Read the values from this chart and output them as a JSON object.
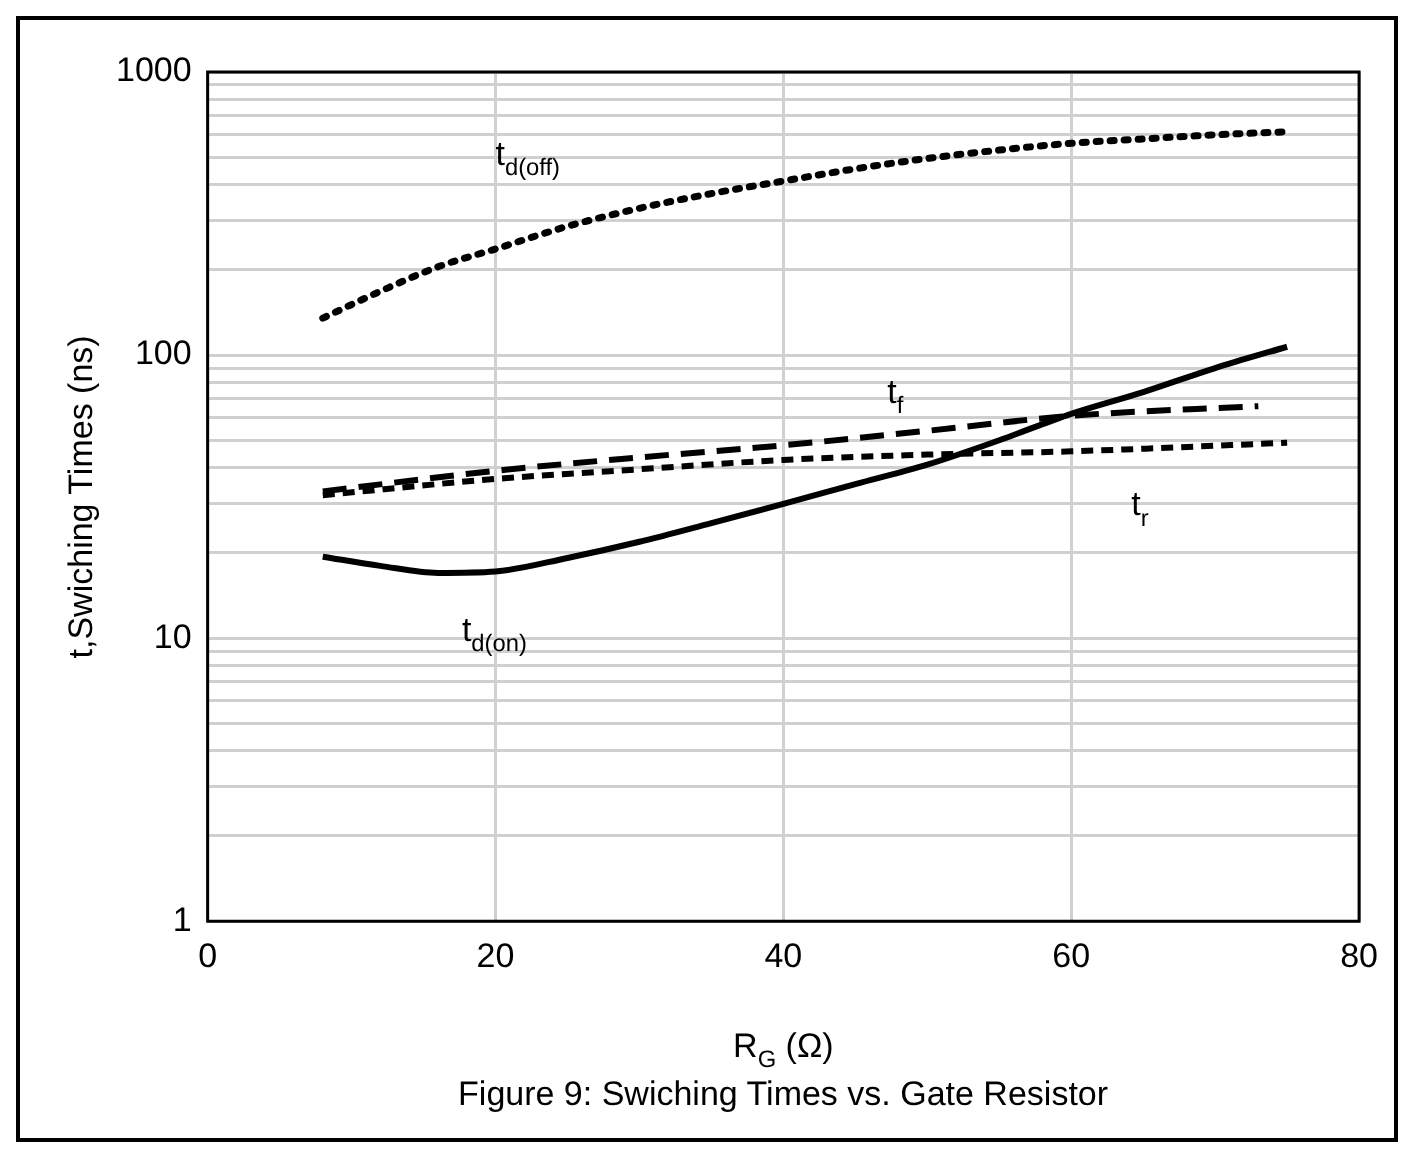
{
  "chart_data": {
    "type": "line",
    "xlabel": "R$_{G}$ (Ω)",
    "ylabel": "t,Swiching Times (ns)",
    "log": "y",
    "grid": true,
    "legend": false,
    "marker": "none",
    "xlim": [
      0,
      80
    ],
    "xticks": [
      0,
      20,
      40,
      60,
      80
    ],
    "ylim": [
      1,
      1000
    ],
    "yticks": [
      1,
      {
        "value": 2,
        "label": null
      },
      {
        "value": 3,
        "label": null
      },
      {
        "value": 4,
        "label": null
      },
      {
        "value": 5,
        "label": null
      },
      {
        "value": 6,
        "label": null
      },
      {
        "value": 7,
        "label": null
      },
      {
        "value": 8,
        "label": null
      },
      {
        "value": 9,
        "label": null
      },
      10,
      {
        "value": 20,
        "label": null
      },
      {
        "value": 30,
        "label": null
      },
      {
        "value": 40,
        "label": null
      },
      {
        "value": 50,
        "label": null
      },
      {
        "value": 60,
        "label": null
      },
      {
        "value": 70,
        "label": null
      },
      {
        "value": 80,
        "label": null
      },
      {
        "value": 90,
        "label": null
      },
      100,
      {
        "value": 200,
        "label": null
      },
      {
        "value": 300,
        "label": null
      },
      {
        "value": 400,
        "label": null
      },
      {
        "value": 500,
        "label": null
      },
      {
        "value": 600,
        "label": null
      },
      {
        "value": 700,
        "label": null
      },
      {
        "value": 800,
        "label": null
      },
      {
        "value": 900,
        "label": null
      },
      1000
    ],
    "series": [
      {
        "name": "t$_{d(off)}$",
        "color": "#000000",
        "line_style": "dotted",
        "x": [
          8,
          12,
          16,
          20,
          25,
          30,
          35,
          40,
          45,
          50,
          55,
          60,
          65,
          70,
          75
        ],
        "values": [
          135,
          168,
          205,
          237,
          285,
          330,
          372,
          412,
          455,
          495,
          530,
          560,
          580,
          600,
          615
        ]
      },
      {
        "name": "t$_{d(on)}$",
        "color": "#000000",
        "line_style": "solid",
        "x": [
          8,
          12,
          16,
          20,
          25,
          30,
          35,
          40,
          45,
          50,
          55,
          60,
          65,
          70,
          75
        ],
        "values": [
          19.4,
          18,
          17,
          17.2,
          19.2,
          21.9,
          25.5,
          29.8,
          35,
          41,
          50,
          62,
          74,
          90,
          107
        ]
      },
      {
        "name": "t$_{f}$",
        "color": "#000000",
        "line_style": "dashed",
        "x": [
          8,
          20,
          30,
          40,
          50,
          60,
          73
        ],
        "values": [
          33,
          39,
          43.5,
          48,
          54,
          61,
          66
        ]
      },
      {
        "name": "t$_{r}$",
        "color": "#000000",
        "line_style": "dashed",
        "x": [
          8,
          20,
          30,
          40,
          50,
          60,
          75
        ],
        "values": [
          32,
          36.5,
          39.5,
          42.6,
          44.5,
          45.7,
          49
        ]
      }
    ],
    "annotations": [
      "Figure 9: Swiching Times vs. Gate Resistor"
    ]
  }
}
